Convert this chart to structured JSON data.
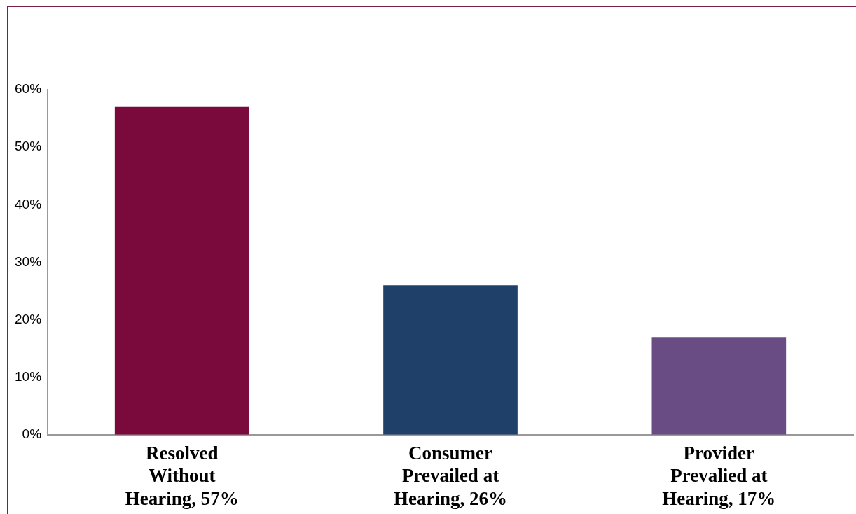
{
  "chart_data": {
    "type": "bar",
    "categories": [
      "Resolved Without Hearing, 57%",
      "Consumer Prevailed at Hearing, 26%",
      "Provider Prevalied at Hearing, 17%"
    ],
    "values": [
      57,
      26,
      17
    ],
    "colors": [
      "#7a0a3c",
      "#1f4068",
      "#6a4c84"
    ],
    "ylim": [
      0,
      60
    ],
    "yticks": [
      {
        "value": 0,
        "label": "0%"
      },
      {
        "value": 10,
        "label": "10%"
      },
      {
        "value": 20,
        "label": "20%"
      },
      {
        "value": 30,
        "label": "30%"
      },
      {
        "value": 40,
        "label": "40%"
      },
      {
        "value": 50,
        "label": "50%"
      },
      {
        "value": 60,
        "label": "60%"
      }
    ],
    "grid": false,
    "legend": false
  }
}
